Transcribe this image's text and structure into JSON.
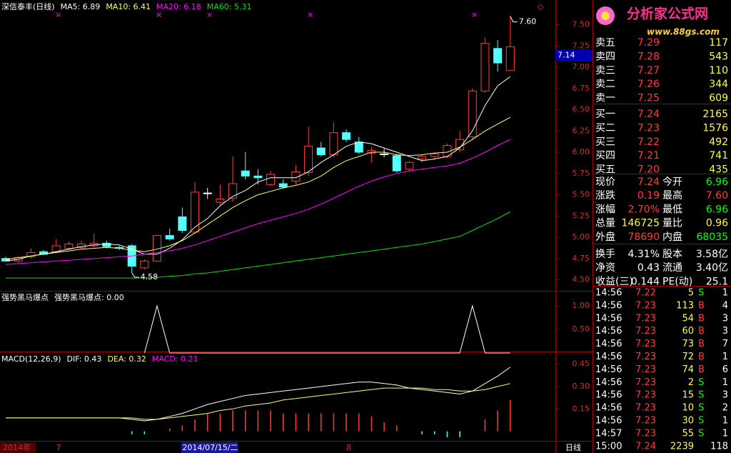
{
  "chart_data": [
    {
      "type": "candlestick",
      "title": "深信泰丰(日线)",
      "categories": [
        "2014年",
        null,
        null,
        null,
        "7",
        null,
        null,
        null,
        null,
        null,
        null,
        null,
        null,
        null,
        "2014/07/15/二",
        null,
        null,
        null,
        null,
        null,
        null,
        null,
        null,
        null,
        null,
        null,
        null,
        "8",
        null,
        null,
        null,
        null,
        null,
        null,
        null,
        null,
        null,
        null,
        null,
        null,
        null
      ],
      "period": "日线",
      "ohlc": [
        [
          4.75,
          4.77,
          4.72,
          4.72
        ],
        [
          4.72,
          4.78,
          4.7,
          4.76
        ],
        [
          4.77,
          4.87,
          4.75,
          4.82
        ],
        [
          4.83,
          4.85,
          4.79,
          4.8
        ],
        [
          4.83,
          4.98,
          4.81,
          4.9
        ],
        [
          4.87,
          4.95,
          4.85,
          4.92
        ],
        [
          4.88,
          4.96,
          4.86,
          4.92
        ],
        [
          4.9,
          5.04,
          4.88,
          4.93
        ],
        [
          4.93,
          4.96,
          4.87,
          4.89
        ],
        [
          4.88,
          4.9,
          4.85,
          4.87
        ],
        [
          4.9,
          4.92,
          4.58,
          4.66
        ],
        [
          4.64,
          4.74,
          4.62,
          4.72
        ],
        [
          4.72,
          5.03,
          4.71,
          5.02
        ],
        [
          5.02,
          5.1,
          4.96,
          4.98
        ],
        [
          5.24,
          5.35,
          5.05,
          5.08
        ],
        [
          5.06,
          5.65,
          5.04,
          5.53
        ],
        [
          5.52,
          5.58,
          5.45,
          5.52
        ],
        [
          5.41,
          5.62,
          5.38,
          5.45
        ],
        [
          5.46,
          5.95,
          5.42,
          5.63
        ],
        [
          5.78,
          6.0,
          5.68,
          5.72
        ],
        [
          5.72,
          5.8,
          5.62,
          5.7
        ],
        [
          5.62,
          5.78,
          5.6,
          5.74
        ],
        [
          5.63,
          5.68,
          5.57,
          5.59
        ],
        [
          5.66,
          5.85,
          5.62,
          5.77
        ],
        [
          5.76,
          6.3,
          5.72,
          6.07
        ],
        [
          6.05,
          6.12,
          5.95,
          5.97
        ],
        [
          5.97,
          6.35,
          5.94,
          6.23
        ],
        [
          6.23,
          6.27,
          6.12,
          6.15
        ],
        [
          6.12,
          6.18,
          5.98,
          6.0
        ],
        [
          5.99,
          6.06,
          5.88,
          6.02
        ],
        [
          5.98,
          6.04,
          5.94,
          5.98
        ],
        [
          5.96,
          5.98,
          5.76,
          5.78
        ],
        [
          5.8,
          5.9,
          5.77,
          5.88
        ],
        [
          5.92,
          5.97,
          5.88,
          5.95
        ],
        [
          5.95,
          6.0,
          5.92,
          5.98
        ],
        [
          5.95,
          6.1,
          5.93,
          6.08
        ],
        [
          6.03,
          6.25,
          6.0,
          6.15
        ],
        [
          6.18,
          6.75,
          6.15,
          6.72
        ],
        [
          6.72,
          7.35,
          6.7,
          7.28
        ],
        [
          7.22,
          7.32,
          6.95,
          7.05
        ],
        [
          6.96,
          7.6,
          6.96,
          7.24
        ]
      ],
      "series": [
        {
          "name": "MA5: 6.89",
          "color": "#ffffff",
          "values": [
            4.72,
            4.74,
            4.78,
            4.8,
            4.83,
            4.86,
            4.89,
            4.91,
            4.92,
            4.91,
            4.86,
            4.8,
            4.8,
            4.87,
            4.97,
            5.12,
            5.22,
            5.37,
            5.48,
            5.55,
            5.65,
            5.7,
            5.7,
            5.7,
            5.77,
            5.88,
            5.97,
            6.07,
            6.12,
            6.1,
            6.05,
            6.0,
            5.95,
            5.9,
            5.92,
            5.95,
            6.05,
            6.25,
            6.55,
            6.78,
            6.89
          ]
        },
        {
          "name": "MA10: 6.41",
          "color": "#ffff66",
          "values": [
            4.74,
            4.76,
            4.78,
            4.8,
            4.82,
            4.84,
            4.86,
            4.87,
            4.88,
            4.87,
            4.85,
            4.83,
            4.86,
            4.9,
            4.96,
            5.05,
            5.15,
            5.25,
            5.35,
            5.43,
            5.5,
            5.54,
            5.58,
            5.61,
            5.65,
            5.72,
            5.82,
            5.9,
            5.95,
            6.0,
            6.0,
            5.97,
            5.96,
            5.97,
            5.99,
            6.0,
            6.06,
            6.15,
            6.25,
            6.33,
            6.41
          ]
        },
        {
          "name": "MA20: 6.18",
          "color": "#ff00ff",
          "values": [
            4.68,
            4.69,
            4.7,
            4.71,
            4.72,
            4.73,
            4.74,
            4.75,
            4.76,
            4.77,
            4.78,
            4.8,
            4.82,
            4.84,
            4.87,
            4.91,
            4.96,
            5.01,
            5.06,
            5.11,
            5.16,
            5.2,
            5.24,
            5.28,
            5.33,
            5.39,
            5.46,
            5.53,
            5.6,
            5.66,
            5.71,
            5.75,
            5.78,
            5.8,
            5.82,
            5.84,
            5.87,
            5.93,
            6.0,
            6.08,
            6.15
          ]
        },
        {
          "name": "MA60: 5.31",
          "color": "#00e000",
          "values": [
            4.52,
            4.52,
            4.52,
            4.52,
            4.52,
            4.52,
            4.52,
            4.52,
            4.52,
            4.52,
            4.52,
            4.52,
            4.53,
            4.54,
            4.55,
            4.57,
            4.58,
            4.6,
            4.62,
            4.64,
            4.66,
            4.68,
            4.7,
            4.72,
            4.74,
            4.76,
            4.78,
            4.8,
            4.82,
            4.84,
            4.86,
            4.88,
            4.9,
            4.92,
            4.95,
            4.98,
            5.01,
            5.08,
            5.15,
            5.22,
            5.3
          ]
        }
      ],
      "annotations": [
        {
          "value": 7.6,
          "label": "7.60"
        },
        {
          "value": 4.58,
          "label": "4.58"
        }
      ],
      "price_tag": {
        "value": 7.14,
        "label": "7.14"
      },
      "ylim": [
        4.37,
        7.79
      ],
      "yticks": [
        {
          "value": 7.5,
          "label": "7.50"
        },
        {
          "value": 7.25,
          "label": "7.25"
        },
        {
          "value": 7.0,
          "label": "7.00"
        },
        {
          "value": 6.75,
          "label": "6.75"
        },
        {
          "value": 6.5,
          "label": "6.50"
        },
        {
          "value": 6.25,
          "label": "6.25"
        },
        {
          "value": 6.0,
          "label": "6.00"
        },
        {
          "value": 5.75,
          "label": "5.75"
        },
        {
          "value": 5.5,
          "label": "5.50"
        },
        {
          "value": 5.25,
          "label": "5.25"
        },
        {
          "value": 5.0,
          "label": "5.00"
        },
        {
          "value": 4.75,
          "label": "4.75"
        },
        {
          "value": 4.5,
          "label": "4.50"
        }
      ]
    },
    {
      "type": "line",
      "title": "强势黑马爆点",
      "series": [
        {
          "name": "强势黑马爆点: 0.00",
          "color": "#ffffff",
          "values": [
            null,
            null,
            null,
            null,
            null,
            null,
            null,
            null,
            null,
            null,
            null,
            0,
            1,
            0,
            0,
            0,
            0,
            0,
            0,
            0,
            0,
            0,
            0,
            0,
            0,
            0,
            0,
            0,
            0,
            0,
            0,
            0,
            0,
            0,
            0,
            0,
            0,
            1,
            0,
            0,
            0
          ]
        }
      ],
      "ylim": [
        0,
        1.32
      ],
      "yticks": [
        {
          "value": 1.0,
          "label": "1.00"
        },
        {
          "value": 0.5,
          "label": "0.50"
        }
      ]
    },
    {
      "type": "macd",
      "title": "MACD(12,26,9)",
      "series": [
        {
          "name": "DIF: 0.43",
          "color": "#ffffff",
          "values": [
            0.09,
            0.09,
            0.09,
            0.09,
            0.09,
            0.09,
            0.09,
            0.09,
            0.09,
            0.09,
            0.08,
            0.07,
            0.08,
            0.1,
            0.12,
            0.15,
            0.18,
            0.2,
            0.22,
            0.24,
            0.25,
            0.26,
            0.27,
            0.28,
            0.29,
            0.3,
            0.31,
            0.32,
            0.33,
            0.33,
            0.32,
            0.31,
            0.29,
            0.28,
            0.27,
            0.26,
            0.25,
            0.27,
            0.32,
            0.37,
            0.43
          ]
        },
        {
          "name": "DEA: 0.32",
          "color": "#ffff66",
          "values": [
            0.09,
            0.09,
            0.09,
            0.09,
            0.09,
            0.09,
            0.09,
            0.09,
            0.09,
            0.09,
            0.09,
            0.08,
            0.08,
            0.09,
            0.1,
            0.11,
            0.12,
            0.14,
            0.15,
            0.17,
            0.18,
            0.19,
            0.21,
            0.22,
            0.23,
            0.24,
            0.25,
            0.26,
            0.27,
            0.28,
            0.29,
            0.29,
            0.29,
            0.29,
            0.28,
            0.28,
            0.27,
            0.27,
            0.28,
            0.3,
            0.32
          ]
        },
        {
          "name": "MACD: 0.21",
          "color": "#ff00ff",
          "values": [
            0,
            0,
            0,
            0,
            0,
            0,
            0,
            0,
            0,
            0,
            -0.02,
            -0.02,
            0,
            0.02,
            0.04,
            0.08,
            0.12,
            0.12,
            0.14,
            0.14,
            0.14,
            0.14,
            0.12,
            0.12,
            0.12,
            0.12,
            0.12,
            0.12,
            0.12,
            0.1,
            0.06,
            0.04,
            0,
            -0.02,
            -0.02,
            -0.04,
            -0.04,
            0,
            0.08,
            0.14,
            0.21
          ]
        }
      ],
      "ylim": [
        -0.04,
        0.53
      ],
      "yticks": [
        {
          "value": 0.45,
          "label": "0.45"
        },
        {
          "value": 0.3,
          "label": "0.30"
        },
        {
          "value": 0.15,
          "label": "0.15"
        }
      ]
    }
  ],
  "quote_panel": {
    "logo": "分析家公式网",
    "url": "www.88gs.com",
    "order_book": [
      [
        "卖五",
        "7.29",
        "117"
      ],
      [
        "卖四",
        "7.28",
        "543"
      ],
      [
        "卖三",
        "7.27",
        "110"
      ],
      [
        "卖二",
        "7.26",
        "344"
      ],
      [
        "卖一",
        "7.25",
        "609"
      ],
      [
        "买一",
        "7.24",
        "2165"
      ],
      [
        "买二",
        "7.23",
        "1576"
      ],
      [
        "买三",
        "7.22",
        "492"
      ],
      [
        "买四",
        "7.21",
        "741"
      ],
      [
        "买五",
        "7.20",
        "435"
      ]
    ],
    "stats": [
      [
        "现价",
        "7.24",
        "今开",
        "6.96"
      ],
      [
        "涨跌",
        "0.19",
        "最高",
        "7.60"
      ],
      [
        "涨幅",
        "2.70%",
        "最低",
        "6.96"
      ],
      [
        "总量",
        "146725",
        "量比",
        "0.96"
      ],
      [
        "外盘",
        "78690",
        "内盘",
        "68035"
      ],
      [
        "换手",
        "4.31%",
        "股本",
        "3.58亿"
      ],
      [
        "净资",
        "0.43",
        "流通",
        "3.40亿"
      ],
      [
        "收益(三)",
        "0.144",
        "PE(动)",
        "25.1"
      ]
    ],
    "trades": [
      [
        "14:56",
        "7.22",
        "5",
        "S",
        "1"
      ],
      [
        "14:56",
        "7.23",
        "113",
        "B",
        "4"
      ],
      [
        "14:56",
        "7.23",
        "54",
        "B",
        "3"
      ],
      [
        "14:56",
        "7.23",
        "60",
        "B",
        "3"
      ],
      [
        "14:56",
        "7.23",
        "73",
        "B",
        "7"
      ],
      [
        "14:56",
        "7.23",
        "72",
        "B",
        "1"
      ],
      [
        "14:56",
        "7.23",
        "74",
        "B",
        "6"
      ],
      [
        "14:56",
        "7.23",
        "2",
        "S",
        "1"
      ],
      [
        "14:56",
        "7.23",
        "15",
        "S",
        "3"
      ],
      [
        "14:56",
        "7.23",
        "10",
        "S",
        "2"
      ],
      [
        "14:56",
        "7.23",
        "30",
        "S",
        "1"
      ],
      [
        "14:57",
        "7.23",
        "55",
        "S",
        "1"
      ],
      [
        "15:00",
        "7.24",
        "2239",
        "118"
      ]
    ]
  }
}
